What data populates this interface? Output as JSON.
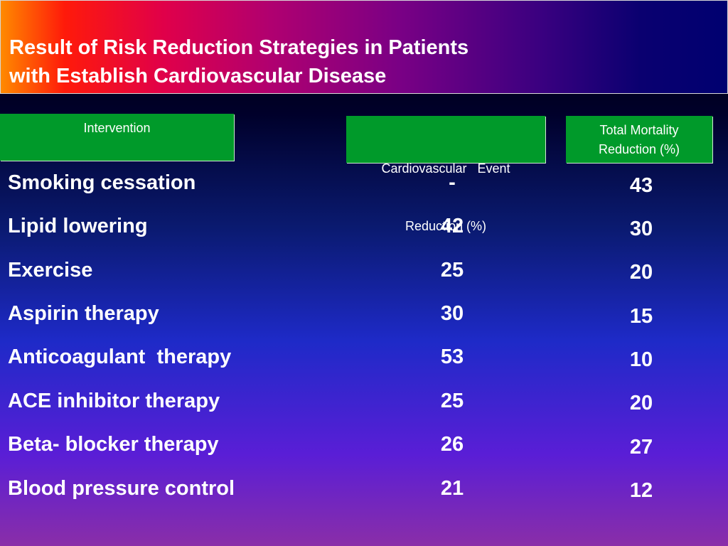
{
  "slide": {
    "title_line1": "Result of Risk Reduction Strategies in Patients",
    "title_line2": "with Establish Cardiovascular Disease"
  },
  "table": {
    "headers": {
      "intervention": "Intervention",
      "cv_line1": "Cardiovascular   Event",
      "cv_line2": "Reduction (%)",
      "mortality_line1": "Total Mortality",
      "mortality_line2": "Reduction (%)"
    },
    "rows": [
      {
        "intervention": "Smoking cessation",
        "cv_event_reduction": "-",
        "total_mortality_reduction": "43"
      },
      {
        "intervention": "Lipid lowering",
        "cv_event_reduction": "42",
        "total_mortality_reduction": "30"
      },
      {
        "intervention": "Exercise",
        "cv_event_reduction": "25",
        "total_mortality_reduction": "20"
      },
      {
        "intervention": "Aspirin therapy",
        "cv_event_reduction": "30",
        "total_mortality_reduction": "15"
      },
      {
        "intervention": "Anticoagulant  therapy",
        "cv_event_reduction": "53",
        "total_mortality_reduction": "10"
      },
      {
        "intervention": "ACE inhibitor therapy",
        "cv_event_reduction": "25",
        "total_mortality_reduction": "20"
      },
      {
        "intervention": "Beta- blocker therapy",
        "cv_event_reduction": "26",
        "total_mortality_reduction": "27"
      },
      {
        "intervention": "Blood pressure control",
        "cv_event_reduction": "21",
        "total_mortality_reduction": "12"
      }
    ]
  }
}
